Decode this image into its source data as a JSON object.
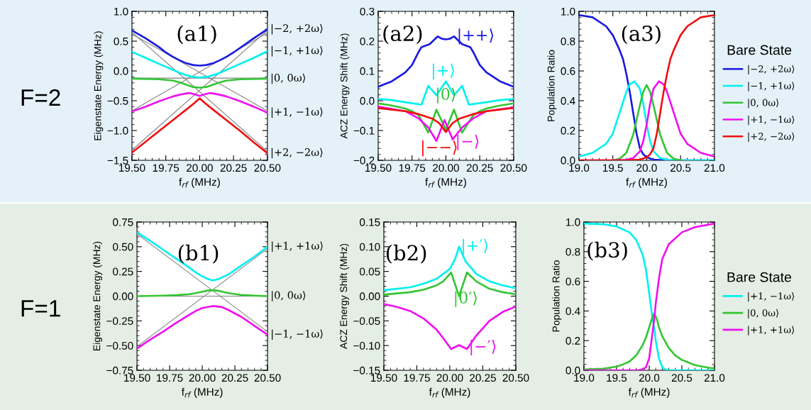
{
  "chart_data": [
    {
      "type": "line",
      "xlabel": "f$_{rf}$ (MHz)",
      "ylabel": "Eigenstate Energy (MHz)",
      "annotations": [
        "(a1)",
        "F=2"
      ],
      "xlim": [
        19.5,
        20.5
      ],
      "ylim": [
        -1.5,
        1.0
      ],
      "xticks": [
        {
          "value": 19.5,
          "label": "19.50"
        },
        {
          "value": 19.75,
          "label": "19.75"
        },
        {
          "value": 20.0,
          "label": "20.00"
        },
        {
          "value": 20.25,
          "label": "20.25"
        },
        {
          "value": 20.5,
          "label": "20.50"
        }
      ],
      "yticks": [
        {
          "value": -1.5,
          "label": "−1.5"
        },
        {
          "value": -1.0,
          "label": "−1.0"
        },
        {
          "value": -0.5,
          "label": "−0.5"
        },
        {
          "value": 0.0,
          "label": "0.0"
        },
        {
          "value": 0.5,
          "label": "0.5"
        },
        {
          "value": 1.0,
          "label": "1.0"
        }
      ],
      "grid": false,
      "series": [
        {
          "color": "#808080",
          "x": [
            19.5,
            20.5
          ],
          "values": [
            0.65,
            -1.35
          ]
        },
        {
          "color": "#808080",
          "x": [
            19.5,
            20.5
          ],
          "values": [
            0.62,
            -0.67
          ]
        },
        {
          "color": "#808080",
          "x": [
            19.5,
            20.5
          ],
          "values": [
            -0.12,
            -0.12
          ]
        },
        {
          "color": "#808080",
          "x": [
            19.5,
            20.5
          ],
          "values": [
            -0.67,
            0.64
          ]
        },
        {
          "color": "#808080",
          "x": [
            19.5,
            20.5
          ],
          "values": [
            -1.33,
            0.68
          ]
        },
        {
          "name": "|−2, +2ω⟩",
          "color": "#1a1ae0",
          "x": [
            19.5,
            19.6,
            19.7,
            19.75,
            19.8,
            19.85,
            19.9,
            19.95,
            20.0,
            20.05,
            20.1,
            20.15,
            20.2,
            20.25,
            20.3,
            20.4,
            20.5
          ],
          "values": [
            0.68,
            0.55,
            0.4,
            0.31,
            0.24,
            0.18,
            0.13,
            0.1,
            0.09,
            0.1,
            0.13,
            0.18,
            0.24,
            0.31,
            0.39,
            0.55,
            0.7
          ]
        },
        {
          "name": "|−1, +1ω⟩",
          "color": "#00f0f0",
          "x": [
            19.5,
            19.6,
            19.7,
            19.75,
            19.8,
            19.85,
            19.9,
            19.95,
            20.0,
            20.05,
            20.1,
            20.15,
            20.2,
            20.25,
            20.3,
            20.4,
            20.5
          ],
          "values": [
            0.32,
            0.22,
            0.12,
            0.07,
            0.02,
            -0.03,
            -0.07,
            -0.1,
            -0.11,
            -0.1,
            -0.07,
            -0.03,
            0.02,
            0.07,
            0.12,
            0.22,
            0.33
          ]
        },
        {
          "name": "|0, 0ω⟩",
          "color": "#33c633",
          "x": [
            19.5,
            19.7,
            19.8,
            19.85,
            19.9,
            19.95,
            20.0,
            20.05,
            20.1,
            20.15,
            20.2,
            20.3,
            20.5
          ],
          "values": [
            -0.13,
            -0.14,
            -0.16,
            -0.19,
            -0.23,
            -0.27,
            -0.28,
            -0.27,
            -0.23,
            -0.19,
            -0.16,
            -0.14,
            -0.13
          ]
        },
        {
          "name": "|+1, −1ω⟩",
          "color": "#f010f0",
          "x": [
            19.5,
            19.6,
            19.7,
            19.8,
            19.85,
            19.92,
            19.96,
            20.0,
            20.04,
            20.08,
            20.15,
            20.2,
            20.3,
            20.4,
            20.5
          ],
          "values": [
            -0.68,
            -0.6,
            -0.51,
            -0.43,
            -0.4,
            -0.37,
            -0.39,
            -0.42,
            -0.39,
            -0.37,
            -0.4,
            -0.43,
            -0.51,
            -0.6,
            -0.7
          ]
        },
        {
          "name": "|+2, −2ω⟩",
          "color": "#f01010",
          "x": [
            19.5,
            19.6,
            19.7,
            19.8,
            19.9,
            19.95,
            20.0,
            20.05,
            20.1,
            20.2,
            20.3,
            20.4,
            20.5
          ],
          "values": [
            -1.37,
            -1.19,
            -1.01,
            -0.83,
            -0.65,
            -0.56,
            -0.46,
            -0.56,
            -0.65,
            -0.83,
            -1.01,
            -1.2,
            -1.38
          ]
        }
      ]
    },
    {
      "type": "line",
      "xlabel": "f$_{rf}$ (MHz)",
      "ylabel": "ACZ Energy Shift (MHz)",
      "annotations": [
        "(a2)",
        "|++⟩",
        "|+⟩",
        "|0⟩",
        "|−⟩",
        "|−−⟩"
      ],
      "xlim": [
        19.5,
        20.5
      ],
      "ylim": [
        -0.2,
        0.3
      ],
      "xticks": [
        {
          "value": 19.5,
          "label": "19.50"
        },
        {
          "value": 19.75,
          "label": "19.75"
        },
        {
          "value": 20.0,
          "label": "20.00"
        },
        {
          "value": 20.25,
          "label": "20.25"
        },
        {
          "value": 20.5,
          "label": "20.50"
        }
      ],
      "yticks": [
        {
          "value": -0.2,
          "label": "−0.2"
        },
        {
          "value": -0.1,
          "label": "−0.1"
        },
        {
          "value": 0.0,
          "label": "0.0"
        },
        {
          "value": 0.1,
          "label": "0.1"
        },
        {
          "value": 0.2,
          "label": "0.2"
        },
        {
          "value": 0.3,
          "label": "0.3"
        }
      ],
      "grid": false,
      "series": [
        {
          "color": "#1a1ae0",
          "x": [
            19.5,
            19.6,
            19.7,
            19.75,
            19.8,
            19.82,
            19.88,
            19.94,
            19.97,
            20.0,
            20.03,
            20.06,
            20.12,
            20.18,
            20.2,
            20.25,
            20.3,
            20.4,
            20.5
          ],
          "values": [
            0.047,
            0.065,
            0.095,
            0.12,
            0.165,
            0.18,
            0.19,
            0.216,
            0.208,
            0.206,
            0.208,
            0.216,
            0.19,
            0.18,
            0.165,
            0.12,
            0.095,
            0.065,
            0.047
          ]
        },
        {
          "color": "#00f0f0",
          "x": [
            19.5,
            19.6,
            19.7,
            19.82,
            19.87,
            19.93,
            20.0,
            20.06,
            20.12,
            20.17,
            20.3,
            20.4,
            20.5
          ],
          "values": [
            0.006,
            0.002,
            -0.005,
            -0.013,
            0.05,
            0.018,
            0.065,
            0.018,
            0.05,
            -0.013,
            -0.005,
            0.002,
            0.006
          ]
        },
        {
          "color": "#33c633",
          "x": [
            19.5,
            19.6,
            19.7,
            19.75,
            19.8,
            19.87,
            19.93,
            20.0,
            20.06,
            20.12,
            20.2,
            20.25,
            20.3,
            20.4,
            20.5
          ],
          "values": [
            -0.009,
            -0.016,
            -0.026,
            -0.035,
            -0.05,
            -0.107,
            -0.03,
            -0.097,
            -0.03,
            -0.107,
            -0.05,
            -0.035,
            -0.026,
            -0.016,
            -0.009
          ]
        },
        {
          "color": "#f010f0",
          "x": [
            19.5,
            19.7,
            19.8,
            19.87,
            19.93,
            19.99,
            20.05,
            20.12,
            20.2,
            20.3,
            20.5
          ],
          "values": [
            -0.02,
            -0.035,
            -0.06,
            -0.09,
            -0.135,
            -0.065,
            -0.13,
            -0.09,
            -0.06,
            -0.035,
            -0.022
          ]
        },
        {
          "color": "#f01010",
          "x": [
            19.5,
            19.7,
            19.8,
            19.9,
            19.95,
            20.0,
            20.05,
            20.1,
            20.2,
            20.3,
            20.5
          ],
          "values": [
            -0.025,
            -0.035,
            -0.045,
            -0.06,
            -0.075,
            -0.105,
            -0.075,
            -0.06,
            -0.045,
            -0.035,
            -0.024
          ]
        }
      ]
    },
    {
      "type": "line",
      "xlabel": "f$_{rf}$ (MHz)",
      "ylabel": "Population Ratio",
      "legend_title": "Bare State",
      "legend": "right",
      "annotations": [
        "(a3)"
      ],
      "xlim": [
        19.0,
        21.0
      ],
      "ylim": [
        0.0,
        1.0
      ],
      "xticks": [
        {
          "value": 19.0,
          "label": "19.0"
        },
        {
          "value": 19.5,
          "label": "19.5"
        },
        {
          "value": 20.0,
          "label": "20.0"
        },
        {
          "value": 20.5,
          "label": "20.5"
        },
        {
          "value": 21.0,
          "label": "21.0"
        }
      ],
      "yticks": [
        {
          "value": 0.0,
          "label": "0.0"
        },
        {
          "value": 0.2,
          "label": "0.2"
        },
        {
          "value": 0.4,
          "label": "0.4"
        },
        {
          "value": 0.6,
          "label": "0.6"
        },
        {
          "value": 0.8,
          "label": "0.8"
        },
        {
          "value": 1.0,
          "label": "1.0"
        }
      ],
      "grid": false,
      "series": [
        {
          "name": "|−2, +2ω⟩",
          "color": "#1a1ae0",
          "x": [
            19.0,
            19.2,
            19.4,
            19.5,
            19.6,
            19.65,
            19.7,
            19.75,
            19.8,
            19.85,
            19.9,
            19.95,
            20.0,
            20.1,
            20.3,
            21.0
          ],
          "values": [
            0.975,
            0.96,
            0.9,
            0.84,
            0.74,
            0.68,
            0.58,
            0.46,
            0.32,
            0.18,
            0.08,
            0.04,
            0.02,
            0.005,
            0.0,
            0.0
          ]
        },
        {
          "name": "|−1, +1ω⟩",
          "color": "#00f0f0",
          "x": [
            19.0,
            19.2,
            19.4,
            19.5,
            19.6,
            19.7,
            19.75,
            19.82,
            19.9,
            19.95,
            20.0,
            20.05,
            20.1,
            20.2,
            20.3,
            20.5,
            21.0
          ],
          "values": [
            0.025,
            0.05,
            0.11,
            0.18,
            0.32,
            0.46,
            0.51,
            0.53,
            0.48,
            0.38,
            0.24,
            0.13,
            0.06,
            0.015,
            0.003,
            0.0,
            0.0
          ]
        },
        {
          "name": "|0, 0ω⟩",
          "color": "#33c633",
          "x": [
            19.5,
            19.6,
            19.7,
            19.8,
            19.9,
            19.95,
            20.0,
            20.05,
            20.1,
            20.2,
            20.3,
            20.4,
            20.5
          ],
          "values": [
            0.0,
            0.01,
            0.05,
            0.17,
            0.37,
            0.46,
            0.505,
            0.46,
            0.37,
            0.17,
            0.05,
            0.01,
            0.0
          ]
        },
        {
          "name": "|+1, −1ω⟩",
          "color": "#f010f0",
          "x": [
            19.0,
            19.5,
            19.7,
            19.8,
            19.9,
            19.95,
            20.0,
            20.05,
            20.1,
            20.18,
            20.25,
            20.3,
            20.4,
            20.5,
            20.6,
            20.8,
            21.0
          ],
          "values": [
            0.0,
            0.0,
            0.003,
            0.015,
            0.06,
            0.13,
            0.24,
            0.38,
            0.48,
            0.53,
            0.51,
            0.46,
            0.32,
            0.18,
            0.11,
            0.05,
            0.025
          ]
        },
        {
          "name": "|+2, −2ω⟩",
          "color": "#f01010",
          "x": [
            19.0,
            19.7,
            19.9,
            20.0,
            20.05,
            20.1,
            20.15,
            20.2,
            20.25,
            20.3,
            20.35,
            20.4,
            20.5,
            20.6,
            20.8,
            21.0
          ],
          "values": [
            0.0,
            0.0,
            0.005,
            0.02,
            0.04,
            0.08,
            0.18,
            0.32,
            0.46,
            0.58,
            0.68,
            0.74,
            0.84,
            0.9,
            0.96,
            0.975
          ]
        }
      ]
    },
    {
      "type": "line",
      "xlabel": "f$_{rf}$ (MHz)",
      "ylabel": "Eigenstate Energy (MHz)",
      "annotations": [
        "(b1)",
        "F=1"
      ],
      "xlim": [
        19.5,
        20.5
      ],
      "ylim": [
        -0.75,
        0.75
      ],
      "xticks": [
        {
          "value": 19.5,
          "label": "19.50"
        },
        {
          "value": 19.75,
          "label": "19.75"
        },
        {
          "value": 20.0,
          "label": "20.00"
        },
        {
          "value": 20.25,
          "label": "20.25"
        },
        {
          "value": 20.5,
          "label": "20.50"
        }
      ],
      "yticks": [
        {
          "value": -0.75,
          "label": "−0.75"
        },
        {
          "value": -0.5,
          "label": "−0.50"
        },
        {
          "value": -0.25,
          "label": "−0.25"
        },
        {
          "value": 0.0,
          "label": "0.00"
        },
        {
          "value": 0.25,
          "label": "0.25"
        },
        {
          "value": 0.5,
          "label": "0.50"
        },
        {
          "value": 0.75,
          "label": "0.75"
        }
      ],
      "grid": false,
      "series": [
        {
          "color": "#808080",
          "x": [
            19.5,
            20.5
          ],
          "values": [
            0.63,
            -0.36
          ]
        },
        {
          "color": "#808080",
          "x": [
            19.5,
            20.5
          ],
          "values": [
            -0.51,
            0.48
          ]
        },
        {
          "color": "#808080",
          "x": [
            19.5,
            20.5
          ],
          "values": [
            0.0,
            0.0
          ]
        },
        {
          "name": "|+1, +1ω⟩",
          "color": "#00f0f0",
          "x": [
            19.5,
            19.6,
            19.7,
            19.8,
            19.9,
            19.95,
            20.0,
            20.05,
            20.08,
            20.12,
            20.2,
            20.3,
            20.4,
            20.5
          ],
          "values": [
            0.645,
            0.56,
            0.47,
            0.38,
            0.29,
            0.24,
            0.2,
            0.17,
            0.16,
            0.17,
            0.22,
            0.31,
            0.4,
            0.5
          ]
        },
        {
          "name": "|0, 0ω⟩",
          "color": "#33c633",
          "x": [
            19.5,
            19.7,
            19.8,
            19.9,
            19.95,
            20.0,
            20.05,
            20.08,
            20.12,
            20.2,
            20.3,
            20.4,
            20.5
          ],
          "values": [
            0.0,
            0.005,
            0.01,
            0.02,
            0.03,
            0.045,
            0.058,
            0.06,
            0.055,
            0.03,
            0.012,
            0.005,
            0.0
          ]
        },
        {
          "name": "|−1, −1ω⟩",
          "color": "#f010f0",
          "x": [
            19.5,
            19.6,
            19.7,
            19.8,
            19.9,
            19.95,
            20.0,
            20.08,
            20.15,
            20.2,
            20.3,
            20.4,
            20.5
          ],
          "values": [
            -0.53,
            -0.44,
            -0.36,
            -0.27,
            -0.19,
            -0.15,
            -0.12,
            -0.1,
            -0.11,
            -0.14,
            -0.21,
            -0.3,
            -0.39
          ]
        }
      ]
    },
    {
      "type": "line",
      "xlabel": "f$_{rf}$ (MHz)",
      "ylabel": "ACZ Energy Shift (MHz)",
      "annotations": [
        "(b2)",
        "|+′⟩",
        "|0′⟩",
        "|−′⟩"
      ],
      "xlim": [
        19.5,
        20.5
      ],
      "ylim": [
        -0.15,
        0.15
      ],
      "xticks": [
        {
          "value": 19.5,
          "label": "19.50"
        },
        {
          "value": 19.75,
          "label": "19.75"
        },
        {
          "value": 20.0,
          "label": "20.00"
        },
        {
          "value": 20.25,
          "label": "20.25"
        },
        {
          "value": 20.5,
          "label": "20.50"
        }
      ],
      "yticks": [
        {
          "value": -0.15,
          "label": "−0.15"
        },
        {
          "value": -0.1,
          "label": "−0.10"
        },
        {
          "value": -0.05,
          "label": "−0.05"
        },
        {
          "value": 0.0,
          "label": "0.00"
        },
        {
          "value": 0.05,
          "label": "0.05"
        },
        {
          "value": 0.1,
          "label": "0.10"
        },
        {
          "value": 0.15,
          "label": "0.15"
        }
      ],
      "grid": false,
      "series": [
        {
          "color": "#00f0f0",
          "x": [
            19.5,
            19.7,
            19.8,
            19.9,
            20.0,
            20.04,
            20.07,
            20.12,
            20.2,
            20.3,
            20.4,
            20.5
          ],
          "values": [
            0.012,
            0.018,
            0.025,
            0.035,
            0.055,
            0.075,
            0.1,
            0.07,
            0.045,
            0.03,
            0.022,
            0.016
          ]
        },
        {
          "color": "#33c633",
          "x": [
            19.5,
            19.7,
            19.8,
            19.9,
            19.95,
            20.01,
            20.07,
            20.13,
            20.2,
            20.3,
            20.4,
            20.5
          ],
          "values": [
            0.003,
            0.008,
            0.013,
            0.022,
            0.03,
            0.048,
            0.0,
            0.048,
            0.03,
            0.015,
            0.008,
            0.004
          ]
        },
        {
          "color": "#f010f0",
          "x": [
            19.5,
            19.6,
            19.7,
            19.8,
            19.9,
            19.95,
            20.01,
            20.07,
            20.13,
            20.2,
            20.25,
            20.3,
            20.4,
            20.5
          ],
          "values": [
            -0.016,
            -0.022,
            -0.03,
            -0.045,
            -0.068,
            -0.085,
            -0.107,
            -0.099,
            -0.107,
            -0.08,
            -0.065,
            -0.05,
            -0.032,
            -0.021
          ]
        }
      ]
    },
    {
      "type": "line",
      "xlabel": "f$_{rf}$ (MHz)",
      "ylabel": "Population Ratio",
      "legend_title": "Bare State",
      "legend": "right",
      "annotations": [
        "(b3)"
      ],
      "xlim": [
        19.0,
        21.0
      ],
      "ylim": [
        0.0,
        1.0
      ],
      "xticks": [
        {
          "value": 19.0,
          "label": "19.0"
        },
        {
          "value": 19.5,
          "label": "19.5"
        },
        {
          "value": 20.0,
          "label": "20.0"
        },
        {
          "value": 20.5,
          "label": "20.5"
        },
        {
          "value": 21.0,
          "label": "21.0"
        }
      ],
      "yticks": [
        {
          "value": 0.0,
          "label": "0.0"
        },
        {
          "value": 0.2,
          "label": "0.2"
        },
        {
          "value": 0.4,
          "label": "0.4"
        },
        {
          "value": 0.6,
          "label": "0.6"
        },
        {
          "value": 0.8,
          "label": "0.8"
        },
        {
          "value": 1.0,
          "label": "1.0"
        }
      ],
      "grid": false,
      "series": [
        {
          "name": "|+1, −1ω⟩",
          "color": "#00f0f0",
          "x": [
            19.0,
            19.3,
            19.5,
            19.7,
            19.8,
            19.9,
            19.95,
            20.0,
            20.05,
            20.08,
            20.1,
            20.15,
            20.2,
            20.25,
            20.3,
            21.0
          ],
          "values": [
            0.99,
            0.985,
            0.97,
            0.93,
            0.88,
            0.78,
            0.68,
            0.52,
            0.35,
            0.28,
            0.2,
            0.08,
            0.02,
            0.005,
            0.0,
            0.0
          ]
        },
        {
          "name": "|0, 0ω⟩",
          "color": "#33c633",
          "x": [
            19.0,
            19.3,
            19.5,
            19.6,
            19.7,
            19.8,
            19.9,
            19.95,
            20.0,
            20.05,
            20.08,
            20.12,
            20.15,
            20.2,
            20.3,
            20.4,
            20.5,
            20.7,
            20.9,
            21.0
          ],
          "values": [
            0.005,
            0.01,
            0.025,
            0.04,
            0.06,
            0.1,
            0.17,
            0.22,
            0.29,
            0.36,
            0.385,
            0.34,
            0.29,
            0.23,
            0.15,
            0.1,
            0.07,
            0.035,
            0.018,
            0.012
          ]
        },
        {
          "name": "|+1, +1ω⟩",
          "color": "#f010f0",
          "x": [
            19.0,
            19.8,
            19.9,
            19.95,
            20.0,
            20.05,
            20.08,
            20.1,
            20.15,
            20.2,
            20.3,
            20.5,
            20.7,
            21.0
          ],
          "values": [
            0.0,
            0.0,
            0.005,
            0.02,
            0.08,
            0.25,
            0.36,
            0.45,
            0.62,
            0.75,
            0.85,
            0.93,
            0.965,
            0.99
          ]
        }
      ]
    }
  ]
}
